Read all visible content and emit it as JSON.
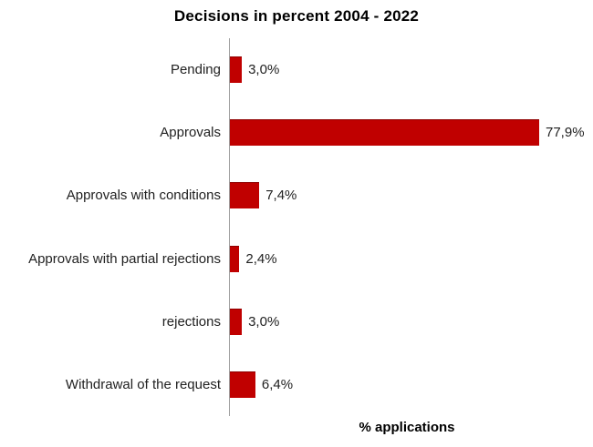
{
  "chart_data": {
    "type": "bar",
    "orientation": "horizontal",
    "title": "Decisions in percent 2004 - 2022",
    "xlabel": "% applications",
    "categories": [
      "Pending",
      "Approvals",
      "Approvals with conditions",
      "Approvals with partial rejections",
      "rejections",
      "Withdrawal of the request"
    ],
    "values": [
      3.0,
      77.9,
      7.4,
      2.4,
      3.0,
      6.4
    ],
    "value_labels": [
      "3,0%",
      "77,9%",
      "7,4%",
      "2,4%",
      "3,0%",
      "6,4%"
    ],
    "bar_color": "#c00000",
    "axis_line_color": "#9e9e9e",
    "xlim": [
      0,
      90
    ],
    "grid": false,
    "legend": false,
    "value_label_position": "outside-end",
    "decimal_separator": ","
  }
}
